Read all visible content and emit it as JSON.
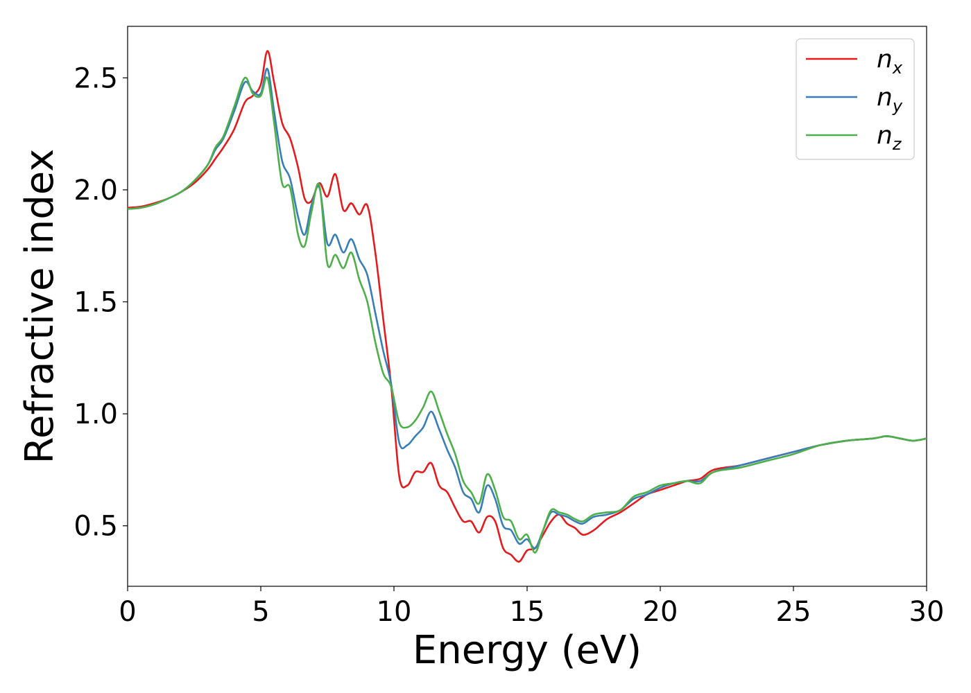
{
  "chart_data": {
    "type": "line",
    "title": "",
    "xlabel": "Energy (eV)",
    "ylabel": "Refractive index",
    "xlim": [
      0,
      30
    ],
    "ylim": [
      0.23,
      2.73
    ],
    "xticks": [
      0,
      5,
      10,
      15,
      20,
      25,
      30
    ],
    "xtick_labels": [
      "0",
      "5",
      "10",
      "15",
      "20",
      "25",
      "30"
    ],
    "yticks": [
      0.5,
      1.0,
      1.5,
      2.0,
      2.5
    ],
    "ytick_labels": [
      "0.5",
      "1.0",
      "1.5",
      "2.0",
      "2.5"
    ],
    "grid": false,
    "legend_position": "top-right",
    "x": [
      0,
      0.5,
      1,
      1.5,
      2,
      2.5,
      3,
      3.3,
      3.6,
      4,
      4.4,
      4.7,
      5,
      5.25,
      5.5,
      5.8,
      6.1,
      6.4,
      6.65,
      6.9,
      7.2,
      7.5,
      7.8,
      8.1,
      8.4,
      8.7,
      9.0,
      9.3,
      9.6,
      9.9,
      10.2,
      10.5,
      10.8,
      11.1,
      11.4,
      11.7,
      12.0,
      12.3,
      12.6,
      12.9,
      13.2,
      13.5,
      13.8,
      14.1,
      14.4,
      14.7,
      15.0,
      15.3,
      15.6,
      15.9,
      16.2,
      16.5,
      16.8,
      17.1,
      17.5,
      18,
      18.5,
      19,
      19.5,
      20,
      20.5,
      21,
      21.5,
      22,
      23,
      24,
      25,
      26,
      27,
      28,
      28.5,
      29,
      29.5,
      30
    ],
    "series": [
      {
        "name": "n",
        "subscript": "x",
        "color": "#e41a1c",
        "values": [
          1.92,
          1.925,
          1.94,
          1.96,
          1.99,
          2.03,
          2.09,
          2.14,
          2.19,
          2.27,
          2.39,
          2.42,
          2.47,
          2.62,
          2.48,
          2.3,
          2.23,
          2.1,
          1.96,
          1.95,
          2.03,
          1.97,
          2.07,
          1.91,
          1.94,
          1.89,
          1.93,
          1.72,
          1.42,
          1.12,
          0.72,
          0.68,
          0.74,
          0.74,
          0.78,
          0.68,
          0.65,
          0.58,
          0.52,
          0.52,
          0.47,
          0.54,
          0.52,
          0.4,
          0.37,
          0.34,
          0.39,
          0.4,
          0.46,
          0.52,
          0.55,
          0.51,
          0.49,
          0.46,
          0.48,
          0.53,
          0.56,
          0.6,
          0.64,
          0.66,
          0.68,
          0.7,
          0.71,
          0.75,
          0.77,
          0.8,
          0.83,
          0.86,
          0.88,
          0.89,
          0.9,
          0.89,
          0.88,
          0.89
        ]
      },
      {
        "name": "n",
        "subscript": "y",
        "color": "#377eb8",
        "values": [
          1.915,
          1.92,
          1.935,
          1.96,
          1.99,
          2.04,
          2.11,
          2.18,
          2.23,
          2.35,
          2.48,
          2.44,
          2.43,
          2.54,
          2.35,
          2.13,
          2.05,
          1.88,
          1.8,
          1.93,
          2.01,
          1.76,
          1.8,
          1.72,
          1.78,
          1.69,
          1.62,
          1.45,
          1.28,
          1.13,
          0.87,
          0.86,
          0.9,
          0.94,
          1.01,
          0.93,
          0.84,
          0.76,
          0.65,
          0.62,
          0.56,
          0.68,
          0.62,
          0.5,
          0.48,
          0.42,
          0.44,
          0.4,
          0.48,
          0.56,
          0.55,
          0.54,
          0.52,
          0.51,
          0.54,
          0.55,
          0.57,
          0.62,
          0.64,
          0.67,
          0.69,
          0.7,
          0.7,
          0.74,
          0.77,
          0.8,
          0.83,
          0.86,
          0.88,
          0.89,
          0.9,
          0.89,
          0.88,
          0.89
        ]
      },
      {
        "name": "n",
        "subscript": "z",
        "color": "#4daf4a",
        "values": [
          1.915,
          1.92,
          1.935,
          1.96,
          1.99,
          2.04,
          2.11,
          2.19,
          2.24,
          2.37,
          2.5,
          2.43,
          2.42,
          2.5,
          2.3,
          2.03,
          2.01,
          1.8,
          1.75,
          1.9,
          2.02,
          1.67,
          1.71,
          1.65,
          1.72,
          1.6,
          1.5,
          1.32,
          1.18,
          1.12,
          0.96,
          0.94,
          0.97,
          1.03,
          1.1,
          1.01,
          0.91,
          0.82,
          0.7,
          0.65,
          0.6,
          0.73,
          0.66,
          0.54,
          0.52,
          0.44,
          0.46,
          0.38,
          0.48,
          0.57,
          0.56,
          0.55,
          0.53,
          0.52,
          0.55,
          0.56,
          0.57,
          0.63,
          0.65,
          0.68,
          0.69,
          0.7,
          0.69,
          0.74,
          0.76,
          0.79,
          0.82,
          0.86,
          0.88,
          0.89,
          0.9,
          0.89,
          0.88,
          0.89
        ]
      }
    ]
  }
}
